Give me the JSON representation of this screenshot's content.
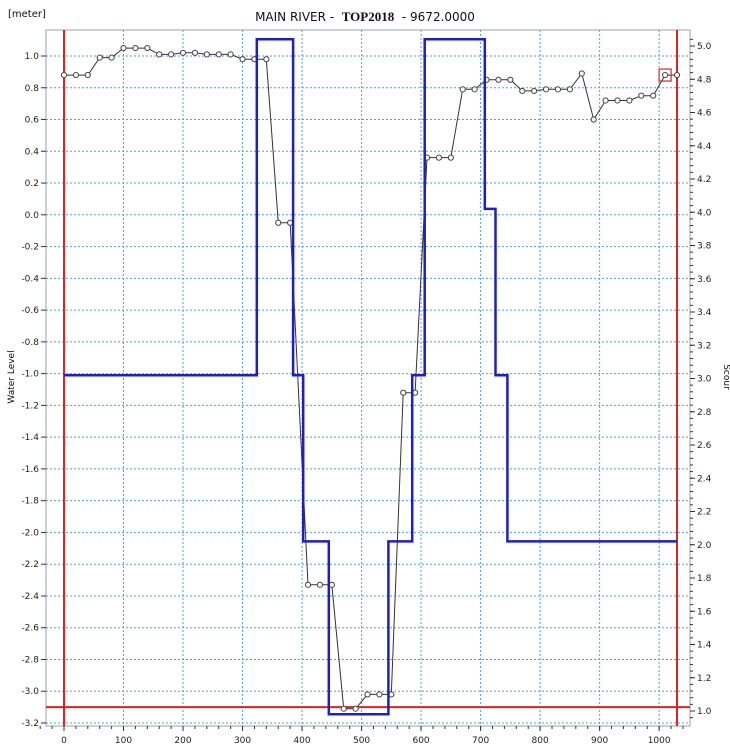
{
  "header": {
    "unit_label": "[meter]",
    "title_prefix": "MAIN RIVER -",
    "title_bold": "TOP2018",
    "title_suffix": "- 9672.0000"
  },
  "chart_data": {
    "type": "line",
    "title": "MAIN RIVER - TOP2018 - 9672.0000",
    "ylabel": "Water Level",
    "y2label": "Scour",
    "xlim": [
      0,
      1030
    ],
    "ylim": [
      -3.2,
      1.1
    ],
    "y2lim": [
      0.96,
      5.04
    ],
    "x_ticks": [
      0,
      100,
      200,
      300,
      400,
      500,
      600,
      700,
      800,
      900,
      1000
    ],
    "y_ticks": [
      1.0,
      0.8,
      0.6,
      0.4,
      0.2,
      0.0,
      -0.2,
      -0.4,
      -0.6,
      -0.8,
      -1.0,
      -1.2,
      -1.4,
      -1.6,
      -1.8,
      -2.0,
      -2.2,
      -2.4,
      -2.6,
      -2.8,
      -3.0,
      -3.2
    ],
    "y_tick_labels": [
      "1.0",
      "0.8",
      "0.6",
      "0.4",
      "0.2",
      "0.0",
      "-0.2",
      "-0.4",
      "-0.6",
      "-0.8",
      "-1.0",
      "-1.2",
      "-1.4",
      "-1.6",
      "-1.8",
      "-2.0",
      "-2.2",
      "-2.4",
      "-2.6",
      "-2.8",
      "-3.0",
      "-3.2"
    ],
    "y2_ticks": [
      5.0,
      4.8,
      4.6,
      4.4,
      4.2,
      4.0,
      3.8,
      3.6,
      3.4,
      3.2,
      3.0,
      2.8,
      2.6,
      2.4,
      2.2,
      2.0,
      1.8,
      1.6,
      1.4,
      1.2,
      1.0
    ],
    "y2_tick_labels": [
      "5.0",
      "4.8",
      "4.6",
      "4.4",
      "4.2",
      "4.0",
      "3.8",
      "3.6",
      "3.4",
      "3.2",
      "3.0",
      "2.8",
      "2.6",
      "2.4",
      "2.2",
      "2.0",
      "1.8",
      "1.6",
      "1.4",
      "1.2",
      "1.0"
    ],
    "grid": true,
    "series": [
      {
        "axis": "left",
        "color": "#333333",
        "markers": true,
        "points": [
          [
            0,
            0.88
          ],
          [
            20,
            0.88
          ],
          [
            40,
            0.88
          ],
          [
            60,
            0.99
          ],
          [
            80,
            0.99
          ],
          [
            100,
            1.05
          ],
          [
            120,
            1.05
          ],
          [
            140,
            1.05
          ],
          [
            160,
            1.01
          ],
          [
            180,
            1.01
          ],
          [
            200,
            1.02
          ],
          [
            220,
            1.02
          ],
          [
            240,
            1.01
          ],
          [
            260,
            1.01
          ],
          [
            280,
            1.01
          ],
          [
            300,
            0.98
          ],
          [
            320,
            0.98
          ],
          [
            340,
            0.98
          ],
          [
            360,
            -0.05
          ],
          [
            380,
            -0.05
          ],
          [
            410,
            -2.33
          ],
          [
            430,
            -2.33
          ],
          [
            450,
            -2.33
          ],
          [
            470,
            -3.11
          ],
          [
            490,
            -3.11
          ],
          [
            510,
            -3.02
          ],
          [
            530,
            -3.02
          ],
          [
            550,
            -3.02
          ],
          [
            570,
            -1.12
          ],
          [
            590,
            -1.12
          ],
          [
            610,
            0.36
          ],
          [
            630,
            0.36
          ],
          [
            650,
            0.36
          ],
          [
            670,
            0.79
          ],
          [
            690,
            0.79
          ],
          [
            710,
            0.85
          ],
          [
            730,
            0.85
          ],
          [
            750,
            0.85
          ],
          [
            770,
            0.78
          ],
          [
            790,
            0.78
          ],
          [
            810,
            0.79
          ],
          [
            830,
            0.79
          ],
          [
            850,
            0.79
          ],
          [
            870,
            0.89
          ],
          [
            890,
            0.6
          ],
          [
            910,
            0.72
          ],
          [
            930,
            0.72
          ],
          [
            950,
            0.72
          ],
          [
            970,
            0.75
          ],
          [
            990,
            0.75
          ],
          [
            1010,
            0.88
          ],
          [
            1030,
            0.88
          ]
        ]
      },
      {
        "axis": "right",
        "color": "#1f1fbf",
        "markers": false,
        "points": [
          [
            0,
            3.02
          ],
          [
            324,
            3.02
          ],
          [
            324,
            5.04
          ],
          [
            385,
            5.04
          ],
          [
            385,
            3.02
          ],
          [
            402,
            3.02
          ],
          [
            402,
            2.02
          ],
          [
            445,
            2.02
          ],
          [
            445,
            0.98
          ],
          [
            545,
            0.98
          ],
          [
            545,
            2.02
          ],
          [
            585,
            2.02
          ],
          [
            585,
            3.02
          ],
          [
            606,
            3.02
          ],
          [
            606,
            5.04
          ],
          [
            707,
            5.04
          ],
          [
            707,
            4.02
          ],
          [
            725,
            4.02
          ],
          [
            725,
            3.02
          ],
          [
            745,
            3.02
          ],
          [
            745,
            2.02
          ],
          [
            1030,
            2.02
          ]
        ]
      }
    ],
    "vertical_markers": {
      "color": "#dd2222",
      "x": [
        0,
        1030
      ]
    },
    "horizontal_marker": {
      "color": "#dd2222",
      "y": -3.1
    },
    "highlight_point": {
      "x": 1010,
      "y": 0.88,
      "color": "#dd2222"
    }
  }
}
